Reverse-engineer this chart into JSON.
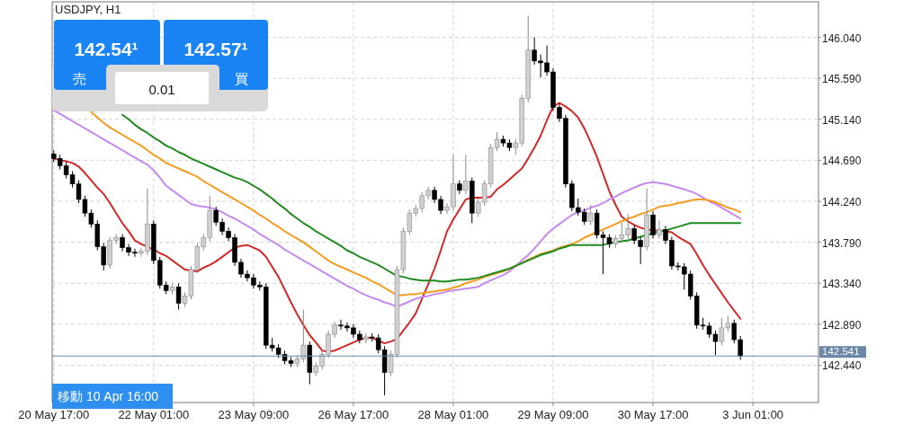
{
  "chart_data": {
    "type": "candlestick",
    "title": "USDJPY, H1",
    "categories": [
      "20 May 17:00",
      null,
      null,
      null,
      null,
      null,
      null,
      null,
      null,
      null,
      null,
      null,
      null,
      null,
      null,
      null,
      "22 May 01:00",
      null,
      null,
      null,
      null,
      null,
      null,
      null,
      null,
      null,
      null,
      null,
      null,
      null,
      null,
      null,
      "23 May 09:00",
      null,
      null,
      null,
      null,
      null,
      null,
      null,
      null,
      null,
      null,
      null,
      null,
      null,
      null,
      null,
      "26 May 17:00",
      null,
      null,
      null,
      null,
      null,
      null,
      null,
      null,
      null,
      null,
      null,
      null,
      null,
      null,
      null,
      "28 May 01:00",
      null,
      null,
      null,
      null,
      null,
      null,
      null,
      null,
      null,
      null,
      null,
      null,
      null,
      null,
      null,
      "29 May 09:00",
      null,
      null,
      null,
      null,
      null,
      null,
      null,
      null,
      null,
      null,
      null,
      null,
      null,
      null,
      null,
      "30 May 17:00",
      null,
      null,
      null,
      null,
      null,
      null,
      null,
      null,
      null,
      null,
      null,
      null,
      null,
      null,
      null,
      "3 Jun 01:00"
    ],
    "ohlc": [
      [
        144.76,
        144.8,
        144.67,
        144.71
      ],
      [
        144.71,
        144.75,
        144.59,
        144.63
      ],
      [
        144.63,
        144.67,
        144.49,
        144.53
      ],
      [
        144.53,
        144.57,
        144.39,
        144.43
      ],
      [
        144.43,
        144.47,
        144.22,
        144.26
      ],
      [
        144.26,
        144.3,
        144.07,
        144.11
      ],
      [
        144.11,
        144.15,
        143.95,
        143.99
      ],
      [
        143.99,
        144.03,
        143.7,
        143.74
      ],
      [
        143.74,
        143.78,
        143.48,
        143.54
      ],
      [
        143.54,
        143.85,
        143.5,
        143.81
      ],
      [
        143.81,
        143.88,
        143.77,
        143.84
      ],
      [
        143.84,
        143.88,
        143.69,
        143.73
      ],
      [
        143.73,
        143.77,
        143.64,
        143.68
      ],
      [
        143.68,
        143.72,
        143.63,
        143.67
      ],
      [
        143.67,
        143.73,
        143.63,
        143.69
      ],
      [
        143.69,
        144.38,
        143.65,
        143.99
      ],
      [
        143.99,
        144.03,
        143.55,
        143.59
      ],
      [
        143.59,
        143.63,
        143.28,
        143.32
      ],
      [
        143.32,
        143.36,
        143.22,
        143.26
      ],
      [
        143.26,
        143.34,
        143.22,
        143.3
      ],
      [
        143.3,
        143.34,
        143.05,
        143.12
      ],
      [
        143.12,
        143.24,
        143.08,
        143.2
      ],
      [
        143.2,
        143.53,
        143.16,
        143.49
      ],
      [
        143.49,
        143.78,
        143.45,
        143.74
      ],
      [
        143.74,
        143.88,
        143.7,
        143.84
      ],
      [
        143.84,
        144.3,
        143.8,
        144.14
      ],
      [
        144.14,
        144.18,
        143.97,
        144.01
      ],
      [
        144.01,
        144.05,
        143.87,
        143.91
      ],
      [
        143.91,
        143.95,
        143.8,
        143.84
      ],
      [
        143.84,
        143.88,
        143.53,
        143.57
      ],
      [
        143.57,
        143.61,
        143.4,
        143.44
      ],
      [
        143.44,
        143.48,
        143.36,
        143.4
      ],
      [
        143.4,
        143.44,
        143.28,
        143.32
      ],
      [
        143.32,
        143.36,
        143.26,
        143.3
      ],
      [
        143.3,
        143.34,
        142.62,
        142.66
      ],
      [
        142.66,
        142.74,
        142.59,
        142.63
      ],
      [
        142.63,
        142.67,
        142.52,
        142.56
      ],
      [
        142.56,
        142.6,
        142.45,
        142.49
      ],
      [
        142.49,
        142.53,
        142.42,
        142.46
      ],
      [
        142.46,
        142.55,
        142.42,
        142.51
      ],
      [
        142.51,
        143.05,
        142.47,
        142.66
      ],
      [
        142.66,
        142.7,
        142.23,
        142.36
      ],
      [
        142.36,
        142.47,
        142.32,
        142.43
      ],
      [
        142.43,
        142.6,
        142.39,
        142.56
      ],
      [
        142.56,
        142.82,
        142.52,
        142.78
      ],
      [
        142.78,
        142.92,
        142.74,
        142.88
      ],
      [
        142.88,
        142.94,
        142.83,
        142.87
      ],
      [
        142.87,
        142.91,
        142.81,
        142.85
      ],
      [
        142.85,
        142.89,
        142.74,
        142.78
      ],
      [
        142.78,
        142.82,
        142.68,
        142.72
      ],
      [
        142.72,
        142.79,
        142.68,
        142.75
      ],
      [
        142.75,
        142.79,
        142.7,
        142.74
      ],
      [
        142.74,
        142.78,
        142.57,
        142.61
      ],
      [
        142.61,
        142.65,
        142.11,
        142.36
      ],
      [
        142.36,
        142.6,
        142.32,
        142.56
      ],
      [
        142.56,
        143.53,
        142.52,
        143.49
      ],
      [
        143.49,
        143.95,
        143.45,
        143.91
      ],
      [
        143.91,
        144.15,
        143.87,
        144.11
      ],
      [
        144.11,
        144.2,
        144.07,
        144.16
      ],
      [
        144.16,
        144.34,
        144.12,
        144.3
      ],
      [
        144.3,
        144.4,
        144.26,
        144.36
      ],
      [
        144.36,
        144.4,
        144.22,
        144.26
      ],
      [
        144.26,
        144.3,
        144.1,
        144.14
      ],
      [
        144.14,
        144.22,
        144.1,
        144.18
      ],
      [
        144.18,
        144.75,
        144.14,
        144.43
      ],
      [
        144.43,
        144.47,
        144.32,
        144.36
      ],
      [
        144.36,
        144.75,
        144.32,
        144.46
      ],
      [
        144.46,
        144.5,
        144.0,
        144.11
      ],
      [
        144.11,
        144.27,
        144.07,
        144.23
      ],
      [
        144.23,
        144.47,
        144.19,
        144.43
      ],
      [
        144.43,
        144.87,
        144.39,
        144.83
      ],
      [
        144.83,
        145.0,
        144.79,
        144.92
      ],
      [
        144.92,
        144.96,
        144.84,
        144.88
      ],
      [
        144.88,
        144.92,
        144.79,
        144.83
      ],
      [
        144.83,
        144.92,
        144.75,
        144.88
      ],
      [
        144.88,
        145.41,
        144.84,
        145.37
      ],
      [
        145.37,
        146.28,
        145.33,
        145.9
      ],
      [
        145.9,
        146.04,
        145.74,
        145.78
      ],
      [
        145.78,
        145.85,
        145.6,
        145.76
      ],
      [
        145.76,
        145.95,
        145.62,
        145.66
      ],
      [
        145.66,
        145.7,
        145.23,
        145.27
      ],
      [
        145.27,
        145.31,
        145.11,
        145.15
      ],
      [
        145.15,
        145.19,
        144.39,
        144.43
      ],
      [
        144.43,
        144.47,
        144.13,
        144.17
      ],
      [
        144.17,
        144.27,
        144.08,
        144.12
      ],
      [
        144.12,
        144.16,
        143.98,
        144.02
      ],
      [
        144.02,
        144.2,
        143.98,
        144.11
      ],
      [
        144.11,
        144.15,
        143.83,
        143.87
      ],
      [
        143.87,
        143.91,
        143.44,
        143.84
      ],
      [
        143.84,
        143.88,
        143.73,
        143.77
      ],
      [
        143.77,
        143.87,
        143.73,
        143.83
      ],
      [
        143.83,
        144.0,
        143.79,
        143.87
      ],
      [
        143.87,
        144.1,
        143.83,
        143.94
      ],
      [
        143.94,
        143.98,
        143.77,
        143.81
      ],
      [
        143.81,
        143.85,
        143.55,
        143.74
      ],
      [
        143.74,
        144.38,
        143.7,
        144.09
      ],
      [
        144.09,
        144.13,
        143.83,
        143.87
      ],
      [
        143.87,
        144.03,
        143.83,
        143.93
      ],
      [
        143.93,
        143.97,
        143.77,
        143.81
      ],
      [
        143.81,
        143.85,
        143.49,
        143.53
      ],
      [
        143.53,
        143.57,
        143.48,
        143.52
      ],
      [
        143.52,
        143.56,
        143.27,
        143.44
      ],
      [
        143.44,
        143.48,
        143.16,
        143.2
      ],
      [
        143.2,
        143.24,
        142.84,
        142.88
      ],
      [
        142.88,
        142.96,
        142.83,
        142.87
      ],
      [
        142.87,
        142.91,
        142.74,
        142.78
      ],
      [
        142.78,
        142.82,
        142.55,
        142.7
      ],
      [
        142.7,
        142.96,
        142.66,
        142.85
      ],
      [
        142.85,
        142.98,
        142.81,
        142.9
      ],
      [
        142.9,
        142.94,
        142.68,
        142.72
      ],
      [
        142.72,
        142.76,
        142.5,
        142.54
      ],
      null,
      null
    ],
    "series": [
      {
        "type": "line",
        "color": "#d62728",
        "values": [
          144.71,
          144.69,
          144.68,
          144.66,
          144.62,
          144.55,
          144.47,
          144.39,
          144.32,
          144.22,
          144.11,
          144.0,
          143.91,
          143.81,
          143.77,
          143.74,
          143.71,
          143.67,
          143.64,
          143.59,
          143.54,
          143.49,
          143.48,
          143.47,
          143.51,
          143.54,
          143.58,
          143.63,
          143.68,
          143.73,
          143.75,
          143.76,
          143.73,
          143.7,
          143.63,
          143.52,
          143.41,
          143.27,
          143.13,
          143.0,
          142.88,
          142.77,
          142.69,
          142.6,
          142.59,
          142.6,
          142.63,
          142.66,
          142.69,
          142.72,
          142.74,
          142.74,
          142.71,
          142.68,
          142.7,
          142.73,
          142.82,
          142.91,
          143.01,
          143.17,
          143.33,
          143.5,
          143.7,
          143.91,
          144.04,
          144.15,
          144.26,
          144.28,
          144.28,
          144.28,
          144.29,
          144.37,
          144.42,
          144.48,
          144.54,
          144.6,
          144.71,
          144.83,
          144.96,
          145.13,
          145.28,
          145.32,
          145.28,
          145.23,
          145.16,
          145.04,
          144.89,
          144.73,
          144.54,
          144.35,
          144.2,
          144.07,
          144.02,
          143.98,
          143.95,
          143.93,
          143.92,
          143.92,
          143.91,
          143.9,
          143.85,
          143.81,
          143.77,
          143.66,
          143.54,
          143.43,
          143.33,
          143.23,
          143.13,
          143.04,
          142.95,
          null,
          null
        ]
      },
      {
        "type": "line",
        "color": "#c58af0",
        "values": [
          145.24,
          145.2,
          145.16,
          145.12,
          145.08,
          145.04,
          145.0,
          144.96,
          144.92,
          144.88,
          144.84,
          144.8,
          144.76,
          144.72,
          144.68,
          144.64,
          144.58,
          144.5,
          144.41,
          144.36,
          144.31,
          144.26,
          144.21,
          144.19,
          144.18,
          144.17,
          144.15,
          144.12,
          144.08,
          144.05,
          144.01,
          143.97,
          143.93,
          143.88,
          143.84,
          143.8,
          143.76,
          143.71,
          143.67,
          143.63,
          143.59,
          143.55,
          143.51,
          143.47,
          143.43,
          143.39,
          143.35,
          143.31,
          143.28,
          143.24,
          143.21,
          143.18,
          143.16,
          143.13,
          143.11,
          143.08,
          143.11,
          143.14,
          143.17,
          143.19,
          143.2,
          143.22,
          143.23,
          143.25,
          143.26,
          143.27,
          143.28,
          143.29,
          143.3,
          143.34,
          143.37,
          143.4,
          143.43,
          143.47,
          143.53,
          143.59,
          143.65,
          143.72,
          143.8,
          143.88,
          143.94,
          143.99,
          144.04,
          144.09,
          144.12,
          144.14,
          144.17,
          144.19,
          144.22,
          144.26,
          144.29,
          144.33,
          144.36,
          144.39,
          144.42,
          144.44,
          144.45,
          144.44,
          144.43,
          144.41,
          144.39,
          144.37,
          144.35,
          144.32,
          144.28,
          144.24,
          144.21,
          144.17,
          144.13,
          144.09,
          144.05,
          null,
          null
        ]
      },
      {
        "type": "line",
        "color": "#f39c1f",
        "values": [
          null,
          null,
          null,
          null,
          null,
          null,
          145.22,
          145.16,
          145.1,
          145.05,
          145.01,
          144.97,
          144.93,
          144.89,
          144.85,
          144.8,
          144.75,
          144.71,
          144.66,
          144.63,
          144.6,
          144.57,
          144.54,
          144.51,
          144.46,
          144.42,
          144.38,
          144.34,
          144.3,
          144.26,
          144.22,
          144.18,
          144.14,
          144.09,
          144.05,
          144.0,
          143.96,
          143.91,
          143.87,
          143.83,
          143.79,
          143.74,
          143.69,
          143.64,
          143.59,
          143.55,
          143.52,
          143.49,
          143.46,
          143.43,
          143.4,
          143.36,
          143.33,
          143.29,
          143.25,
          143.21,
          143.21,
          143.22,
          143.22,
          143.23,
          143.24,
          143.25,
          143.26,
          143.27,
          143.29,
          143.31,
          143.34,
          143.36,
          143.38,
          143.41,
          143.43,
          143.45,
          143.47,
          143.5,
          143.53,
          143.56,
          143.6,
          143.63,
          143.66,
          143.68,
          143.7,
          143.73,
          143.75,
          143.77,
          143.8,
          143.84,
          143.87,
          143.9,
          143.93,
          143.96,
          143.99,
          144.02,
          144.05,
          144.07,
          144.1,
          144.12,
          144.15,
          144.18,
          144.19,
          144.2,
          144.22,
          144.23,
          144.25,
          144.26,
          144.26,
          144.25,
          144.23,
          144.2,
          144.17,
          144.15,
          144.12,
          null,
          null
        ]
      },
      {
        "type": "line",
        "color": "#1f8a1f",
        "values": [
          null,
          null,
          null,
          null,
          null,
          null,
          null,
          null,
          null,
          null,
          null,
          145.19,
          145.14,
          145.08,
          145.03,
          144.99,
          144.94,
          144.9,
          144.85,
          144.82,
          144.78,
          144.75,
          144.71,
          144.68,
          144.65,
          144.62,
          144.59,
          144.56,
          144.53,
          144.5,
          144.48,
          144.45,
          144.41,
          144.37,
          144.32,
          144.27,
          144.21,
          144.16,
          144.1,
          144.05,
          144.0,
          143.96,
          143.91,
          143.87,
          143.83,
          143.79,
          143.75,
          143.7,
          143.67,
          143.63,
          143.6,
          143.57,
          143.54,
          143.5,
          143.46,
          143.42,
          143.41,
          143.39,
          143.38,
          143.37,
          143.37,
          143.37,
          143.36,
          143.36,
          143.37,
          143.38,
          143.38,
          143.39,
          143.4,
          143.42,
          143.44,
          143.46,
          143.48,
          143.5,
          143.53,
          143.56,
          143.59,
          143.62,
          143.65,
          143.67,
          143.69,
          143.72,
          143.74,
          143.76,
          143.76,
          143.76,
          143.76,
          143.76,
          143.76,
          143.78,
          143.79,
          143.8,
          143.81,
          143.83,
          143.85,
          143.87,
          143.89,
          143.91,
          143.92,
          143.94,
          143.96,
          143.98,
          144.0,
          144.0,
          144.0,
          144.0,
          144.0,
          144.0,
          144.0,
          144.0,
          144.0,
          null,
          null
        ]
      }
    ],
    "ylim": [
      142.03,
      146.43
    ],
    "yticks": [
      {
        "value": 142.44,
        "label": "142.440"
      },
      {
        "value": 142.89,
        "label": "142.890"
      },
      {
        "value": 143.34,
        "label": "143.340"
      },
      {
        "value": 143.79,
        "label": "143.790"
      },
      {
        "value": 144.24,
        "label": "144.240"
      },
      {
        "value": 144.69,
        "label": "144.690"
      },
      {
        "value": 145.14,
        "label": "145.140"
      },
      {
        "value": 145.59,
        "label": "145.590"
      },
      {
        "value": 146.04,
        "label": "146.040"
      }
    ],
    "ref_lines": [
      {
        "axis": "y",
        "value": 142.541,
        "label": "142.541",
        "color": "#6d87a8"
      }
    ],
    "grid": true,
    "annotations": [
      "142.54¹",
      "売",
      "142.57¹",
      "買",
      "0.01",
      "移動 10 Apr 16:00"
    ]
  }
}
